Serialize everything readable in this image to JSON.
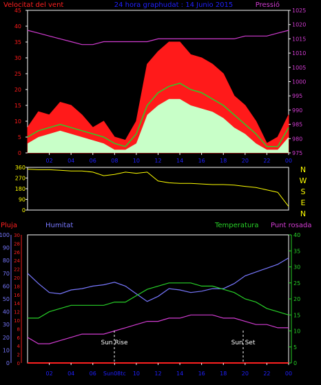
{
  "header": {
    "wind_title": "Velocitat del vent",
    "center_title": "24 hora graphudat : 14 Junio 2015",
    "pressure_title": "Pressió"
  },
  "colors": {
    "wind_max": "#ff1a1a",
    "wind_avg": "#28d228",
    "wind_min": "#c8ffc8",
    "pressure": "#d23cd2",
    "direction": "#ffff00",
    "rain": "#ff2020",
    "humidity": "#7878ff",
    "temperature": "#28d228",
    "dewpoint": "#d23cd2",
    "title_blue": "#2020ff",
    "axis": "#ffffff"
  },
  "x_ticks": [
    "02",
    "04",
    "06",
    "08",
    "10",
    "12",
    "14",
    "16",
    "18",
    "20",
    "22",
    "00"
  ],
  "direction_labels": [
    "N",
    "W",
    "S",
    "E",
    "N"
  ],
  "sun": {
    "rise_label": "Sun Rise",
    "set_label": "Sun Set",
    "rise_tick": "Sun08tc"
  },
  "lower_titles": {
    "rain": "Pluja",
    "humidity": "Humitat",
    "temperature": "Temperatura",
    "dewpoint": "Punt rosada"
  },
  "chart_data": [
    {
      "type": "area",
      "title": "Velocitat del vent",
      "x": [
        0,
        1,
        2,
        3,
        4,
        5,
        6,
        7,
        8,
        9,
        10,
        11,
        12,
        13,
        14,
        15,
        16,
        17,
        18,
        19,
        20,
        21,
        22,
        23,
        24
      ],
      "ylim": [
        0,
        45
      ],
      "ylim_right": [
        975,
        1025
      ],
      "yticks": [
        0,
        5,
        10,
        15,
        20,
        25,
        30,
        35,
        40,
        45
      ],
      "yticks_right": [
        975,
        980,
        985,
        990,
        995,
        1000,
        1005,
        1010,
        1015,
        1020,
        1025
      ],
      "series": [
        {
          "name": "Velocitat del vent",
          "values": [
            8,
            13,
            12,
            16,
            15,
            12,
            8,
            10,
            5,
            4,
            10,
            28,
            32,
            35,
            35,
            31,
            30,
            28,
            25,
            18,
            15,
            10,
            3,
            5,
            12
          ]
        },
        {
          "name": "",
          "values": [
            5,
            7,
            8,
            9,
            8,
            7,
            6,
            5,
            3,
            2,
            6,
            15,
            19,
            21,
            22,
            20,
            19,
            17,
            15,
            12,
            9,
            6,
            2,
            2,
            8
          ]
        },
        {
          "name": "",
          "values": [
            3,
            5,
            6,
            7,
            6,
            5,
            4,
            3,
            1,
            1,
            3,
            12,
            15,
            17,
            17,
            15,
            14,
            13,
            11,
            8,
            6,
            3,
            1,
            1,
            5
          ]
        },
        {
          "name": "Pressió",
          "values": [
            1018,
            1017,
            1016,
            1015,
            1014,
            1013,
            1013,
            1014,
            1014,
            1014,
            1014,
            1014,
            1015,
            1015,
            1015,
            1015,
            1015,
            1015,
            1015,
            1015,
            1016,
            1016,
            1016,
            1017,
            1018
          ]
        }
      ]
    },
    {
      "type": "line",
      "title": "",
      "x": [
        0,
        1,
        2,
        3,
        4,
        5,
        6,
        7,
        8,
        9,
        10,
        11,
        12,
        13,
        14,
        15,
        16,
        17,
        18,
        19,
        20,
        21,
        22,
        23,
        24
      ],
      "ylim": [
        0,
        360
      ],
      "yticks": [
        0,
        90,
        180,
        270,
        360
      ],
      "series": [
        {
          "name": "",
          "values": [
            345,
            340,
            340,
            335,
            330,
            330,
            320,
            290,
            300,
            320,
            310,
            320,
            245,
            230,
            225,
            225,
            220,
            215,
            215,
            210,
            200,
            190,
            170,
            150,
            30
          ]
        }
      ]
    },
    {
      "type": "line",
      "title": "",
      "x": [
        0,
        1,
        2,
        3,
        4,
        5,
        6,
        7,
        8,
        9,
        10,
        11,
        12,
        13,
        14,
        15,
        16,
        17,
        18,
        19,
        20,
        21,
        22,
        23,
        24
      ],
      "ylim_humidity": [
        0,
        100
      ],
      "ylim_rain": [
        0,
        30
      ],
      "ylim_temperature": [
        0,
        40
      ],
      "yticks_humidity": [
        0,
        10,
        20,
        30,
        40,
        50,
        60,
        70,
        80,
        90,
        100
      ],
      "yticks_rain": [
        0,
        2,
        4,
        6,
        8,
        10,
        12,
        14,
        16,
        18,
        20,
        22,
        24,
        26,
        28,
        30
      ],
      "yticks_temperature": [
        0,
        5,
        10,
        15,
        20,
        25,
        30,
        35,
        40
      ],
      "series": [
        {
          "name": "Humitat",
          "values": [
            70,
            62,
            55,
            54,
            57,
            58,
            60,
            61,
            63,
            60,
            54,
            48,
            52,
            58,
            57,
            55,
            56,
            58,
            58,
            62,
            68,
            71,
            74,
            77,
            82
          ]
        },
        {
          "name": "Temperatura",
          "values": [
            14,
            14,
            16,
            17,
            18,
            18,
            18,
            18,
            19,
            19,
            21,
            23,
            24,
            25,
            25,
            25,
            24,
            24,
            23,
            22,
            20,
            19,
            17,
            16,
            15
          ]
        },
        {
          "name": "Punt rosada",
          "values": [
            8,
            6,
            6,
            7,
            8,
            9,
            9,
            9,
            10,
            11,
            12,
            13,
            13,
            14,
            14,
            15,
            15,
            15,
            14,
            14,
            13,
            12,
            12,
            11,
            11
          ]
        },
        {
          "name": "Pluja",
          "values": [
            0,
            0,
            0,
            0,
            0,
            0,
            0,
            0,
            0,
            0,
            0,
            0,
            0,
            0,
            0,
            0,
            0,
            0,
            0,
            0,
            0,
            0,
            0,
            0,
            0
          ]
        }
      ]
    }
  ]
}
